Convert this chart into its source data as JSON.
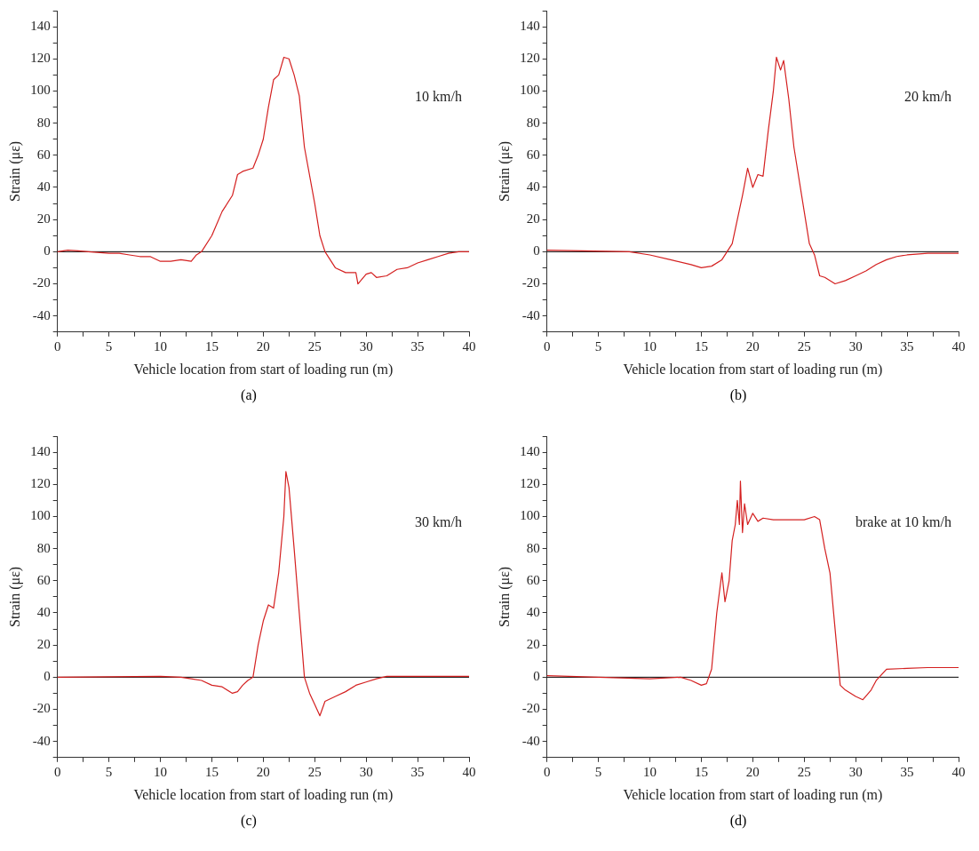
{
  "chart_data": [
    {
      "type": "line",
      "xlabel": "Vehicle location from start of loading run (m)",
      "ylabel": "Strain (με)",
      "subtitle": "(a)",
      "annotations": [
        "10 km/h"
      ],
      "xlim": [
        0,
        40
      ],
      "ylim": [
        -50,
        150
      ],
      "xticks": [
        0,
        {
          "value": 2.5,
          "label": null
        },
        5,
        {
          "value": 7.5,
          "label": null
        },
        10,
        {
          "value": 12.5,
          "label": null
        },
        15,
        {
          "value": 17.5,
          "label": null
        },
        20,
        {
          "value": 22.5,
          "label": null
        },
        25,
        {
          "value": 27.5,
          "label": null
        },
        30,
        {
          "value": 32.5,
          "label": null
        },
        35,
        {
          "value": 37.5,
          "label": null
        },
        40
      ],
      "yticks": [
        {
          "value": -50,
          "label": null
        },
        -40,
        {
          "value": -30,
          "label": null
        },
        -20,
        {
          "value": -10,
          "label": null
        },
        0,
        {
          "value": 10,
          "label": null
        },
        20,
        {
          "value": 30,
          "label": null
        },
        40,
        {
          "value": 50,
          "label": null
        },
        60,
        {
          "value": 70,
          "label": null
        },
        80,
        {
          "value": 90,
          "label": null
        },
        100,
        {
          "value": 110,
          "label": null
        },
        120,
        {
          "value": 130,
          "label": null
        },
        140,
        {
          "value": 150,
          "label": null
        }
      ],
      "grid": false,
      "legend": false,
      "marker": "none",
      "line_style": "solid",
      "ref_lines": [
        {
          "axis": "y",
          "value": 0,
          "color": "#000000"
        }
      ],
      "series": [
        {
          "color": "#d42020",
          "x": [
            0,
            1,
            2,
            3,
            5,
            6,
            7,
            8,
            9,
            10,
            11,
            12,
            13,
            13.5,
            14,
            15,
            16,
            17,
            17.5,
            18,
            19,
            19.5,
            20,
            20.5,
            21,
            21.5,
            22,
            22.5,
            23,
            23.5,
            24,
            25,
            25.5,
            26,
            27,
            28,
            29,
            29.2,
            30,
            30.5,
            31,
            32,
            33,
            34,
            35,
            36,
            37,
            38,
            39,
            40
          ],
          "values": [
            0,
            1,
            0.5,
            0,
            -1,
            -1,
            -2,
            -3,
            -3,
            -6,
            -6,
            -5,
            -6,
            -2,
            0,
            10,
            25,
            35,
            48,
            50,
            52,
            60,
            70,
            90,
            107,
            110,
            121,
            120,
            110,
            97,
            65,
            30,
            10,
            0,
            -10,
            -13,
            -13,
            -20,
            -14,
            -13,
            -16,
            -15,
            -11,
            -10,
            -7,
            -5,
            -3,
            -1,
            0,
            0
          ]
        }
      ]
    },
    {
      "type": "line",
      "xlabel": "Vehicle location from start of loading run (m)",
      "ylabel": "Strain (με)",
      "subtitle": "(b)",
      "annotations": [
        "20 km/h"
      ],
      "xlim": [
        0,
        40
      ],
      "ylim": [
        -50,
        150
      ],
      "xticks": [
        0,
        {
          "value": 2.5,
          "label": null
        },
        5,
        {
          "value": 7.5,
          "label": null
        },
        10,
        {
          "value": 12.5,
          "label": null
        },
        15,
        {
          "value": 17.5,
          "label": null
        },
        20,
        {
          "value": 22.5,
          "label": null
        },
        25,
        {
          "value": 27.5,
          "label": null
        },
        30,
        {
          "value": 32.5,
          "label": null
        },
        35,
        {
          "value": 37.5,
          "label": null
        },
        40
      ],
      "yticks": [
        {
          "value": -50,
          "label": null
        },
        -40,
        {
          "value": -30,
          "label": null
        },
        -20,
        {
          "value": -10,
          "label": null
        },
        0,
        {
          "value": 10,
          "label": null
        },
        20,
        {
          "value": 30,
          "label": null
        },
        40,
        {
          "value": 50,
          "label": null
        },
        60,
        {
          "value": 70,
          "label": null
        },
        80,
        {
          "value": 90,
          "label": null
        },
        100,
        {
          "value": 110,
          "label": null
        },
        120,
        {
          "value": 130,
          "label": null
        },
        140,
        {
          "value": 150,
          "label": null
        }
      ],
      "grid": false,
      "legend": false,
      "marker": "none",
      "line_style": "solid",
      "ref_lines": [
        {
          "axis": "y",
          "value": 0,
          "color": "#000000"
        }
      ],
      "series": [
        {
          "color": "#d42020",
          "x": [
            0,
            8,
            10,
            12,
            14,
            15,
            16,
            17,
            17.5,
            18,
            18.5,
            19,
            19.5,
            20,
            20.5,
            21,
            21.5,
            22,
            22.3,
            22.7,
            23,
            23.5,
            24,
            25,
            25.5,
            26,
            26.5,
            27,
            28,
            29,
            30,
            31,
            32,
            33,
            34,
            35,
            37,
            40
          ],
          "values": [
            1,
            0,
            -2,
            -5,
            -8,
            -10,
            -9,
            -5,
            0,
            5,
            20,
            35,
            52,
            40,
            48,
            47,
            75,
            100,
            121,
            113,
            119,
            95,
            65,
            25,
            5,
            -2,
            -15,
            -16,
            -20,
            -18,
            -15,
            -12,
            -8,
            -5,
            -3,
            -2,
            -1,
            -1
          ]
        }
      ]
    },
    {
      "type": "line",
      "xlabel": "Vehicle location from start of loading run (m)",
      "ylabel": "Strain (με)",
      "subtitle": "(c)",
      "annotations": [
        "30 km/h"
      ],
      "xlim": [
        0,
        40
      ],
      "ylim": [
        -50,
        150
      ],
      "xticks": [
        0,
        {
          "value": 2.5,
          "label": null
        },
        5,
        {
          "value": 7.5,
          "label": null
        },
        10,
        {
          "value": 12.5,
          "label": null
        },
        15,
        {
          "value": 17.5,
          "label": null
        },
        20,
        {
          "value": 22.5,
          "label": null
        },
        25,
        {
          "value": 27.5,
          "label": null
        },
        30,
        {
          "value": 32.5,
          "label": null
        },
        35,
        {
          "value": 37.5,
          "label": null
        },
        40
      ],
      "yticks": [
        {
          "value": -50,
          "label": null
        },
        -40,
        {
          "value": -30,
          "label": null
        },
        -20,
        {
          "value": -10,
          "label": null
        },
        0,
        {
          "value": 10,
          "label": null
        },
        20,
        {
          "value": 30,
          "label": null
        },
        40,
        {
          "value": 50,
          "label": null
        },
        60,
        {
          "value": 70,
          "label": null
        },
        80,
        {
          "value": 90,
          "label": null
        },
        100,
        {
          "value": 110,
          "label": null
        },
        120,
        {
          "value": 130,
          "label": null
        },
        140,
        {
          "value": 150,
          "label": null
        }
      ],
      "grid": false,
      "legend": false,
      "marker": "none",
      "line_style": "solid",
      "ref_lines": [
        {
          "axis": "y",
          "value": 0,
          "color": "#000000"
        }
      ],
      "series": [
        {
          "color": "#d42020",
          "x": [
            0,
            10,
            12,
            13,
            14,
            15,
            16,
            17,
            17.5,
            18,
            18.5,
            19,
            19.5,
            20,
            20.5,
            21,
            21.5,
            22,
            22.2,
            22.5,
            23,
            23.5,
            24,
            24.5,
            25,
            25.5,
            26,
            27,
            28,
            29,
            30,
            31,
            32,
            40
          ],
          "values": [
            0,
            0.5,
            0,
            -1,
            -2,
            -5,
            -6,
            -10,
            -9,
            -5,
            -2,
            0,
            20,
            35,
            45,
            43,
            65,
            100,
            128,
            118,
            80,
            40,
            0,
            -10,
            -17,
            -24,
            -15,
            -12,
            -9,
            -5,
            -3,
            -1,
            0.5,
            0.5
          ]
        }
      ]
    },
    {
      "type": "line",
      "xlabel": "Vehicle location from start of loading run (m)",
      "ylabel": "Strain (με)",
      "subtitle": "(d)",
      "annotations": [
        "brake at 10 km/h"
      ],
      "xlim": [
        0,
        40
      ],
      "ylim": [
        -50,
        150
      ],
      "xticks": [
        0,
        {
          "value": 2.5,
          "label": null
        },
        5,
        {
          "value": 7.5,
          "label": null
        },
        10,
        {
          "value": 12.5,
          "label": null
        },
        15,
        {
          "value": 17.5,
          "label": null
        },
        20,
        {
          "value": 22.5,
          "label": null
        },
        25,
        {
          "value": 27.5,
          "label": null
        },
        30,
        {
          "value": 32.5,
          "label": null
        },
        35,
        {
          "value": 37.5,
          "label": null
        },
        40
      ],
      "yticks": [
        {
          "value": -50,
          "label": null
        },
        -40,
        {
          "value": -30,
          "label": null
        },
        -20,
        {
          "value": -10,
          "label": null
        },
        0,
        {
          "value": 10,
          "label": null
        },
        20,
        {
          "value": 30,
          "label": null
        },
        40,
        {
          "value": 50,
          "label": null
        },
        60,
        {
          "value": 70,
          "label": null
        },
        80,
        {
          "value": 90,
          "label": null
        },
        100,
        {
          "value": 110,
          "label": null
        },
        120,
        {
          "value": 130,
          "label": null
        },
        140,
        {
          "value": 150,
          "label": null
        }
      ],
      "grid": false,
      "legend": false,
      "marker": "none",
      "line_style": "solid",
      "ref_lines": [
        {
          "axis": "y",
          "value": 0,
          "color": "#000000"
        }
      ],
      "series": [
        {
          "color": "#d42020",
          "x": [
            0,
            5,
            10,
            13,
            14,
            15,
            15.5,
            16,
            16.5,
            17,
            17.3,
            17.7,
            18,
            18.3,
            18.5,
            18.7,
            18.8,
            19,
            19.2,
            19.5,
            20,
            20.5,
            21,
            22,
            25,
            26,
            26.5,
            27,
            27.5,
            28,
            28.5,
            29,
            30,
            30.7,
            31.5,
            32,
            33,
            35,
            37,
            40
          ],
          "values": [
            1,
            0,
            -1,
            0,
            -2,
            -5,
            -4,
            5,
            40,
            65,
            47,
            60,
            85,
            95,
            110,
            95,
            122,
            90,
            108,
            95,
            102,
            97,
            99,
            98,
            98,
            100,
            98,
            80,
            65,
            30,
            -5,
            -8,
            -12,
            -14,
            -8,
            -2,
            5,
            5.5,
            6,
            6
          ]
        }
      ]
    }
  ]
}
